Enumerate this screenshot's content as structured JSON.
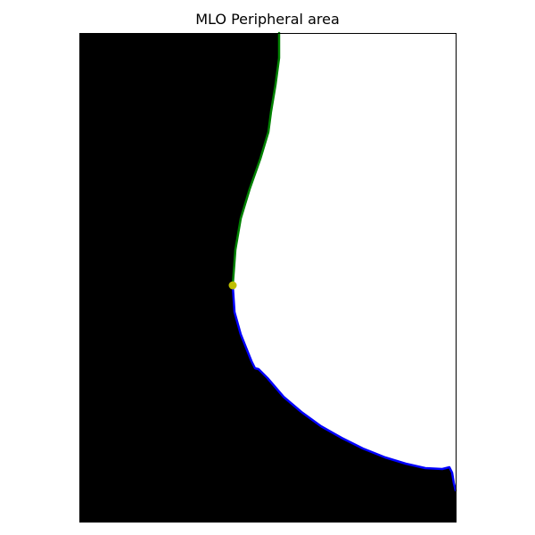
{
  "figure": {
    "title": "MLO Peripheral area"
  },
  "colors": {
    "tissue": "#000000",
    "background_region": "#ffffff",
    "upper_contour": "#008000",
    "lower_contour": "#0000ff",
    "junction_point": "#bfbf00",
    "axes_frame": "#000000"
  }
}
